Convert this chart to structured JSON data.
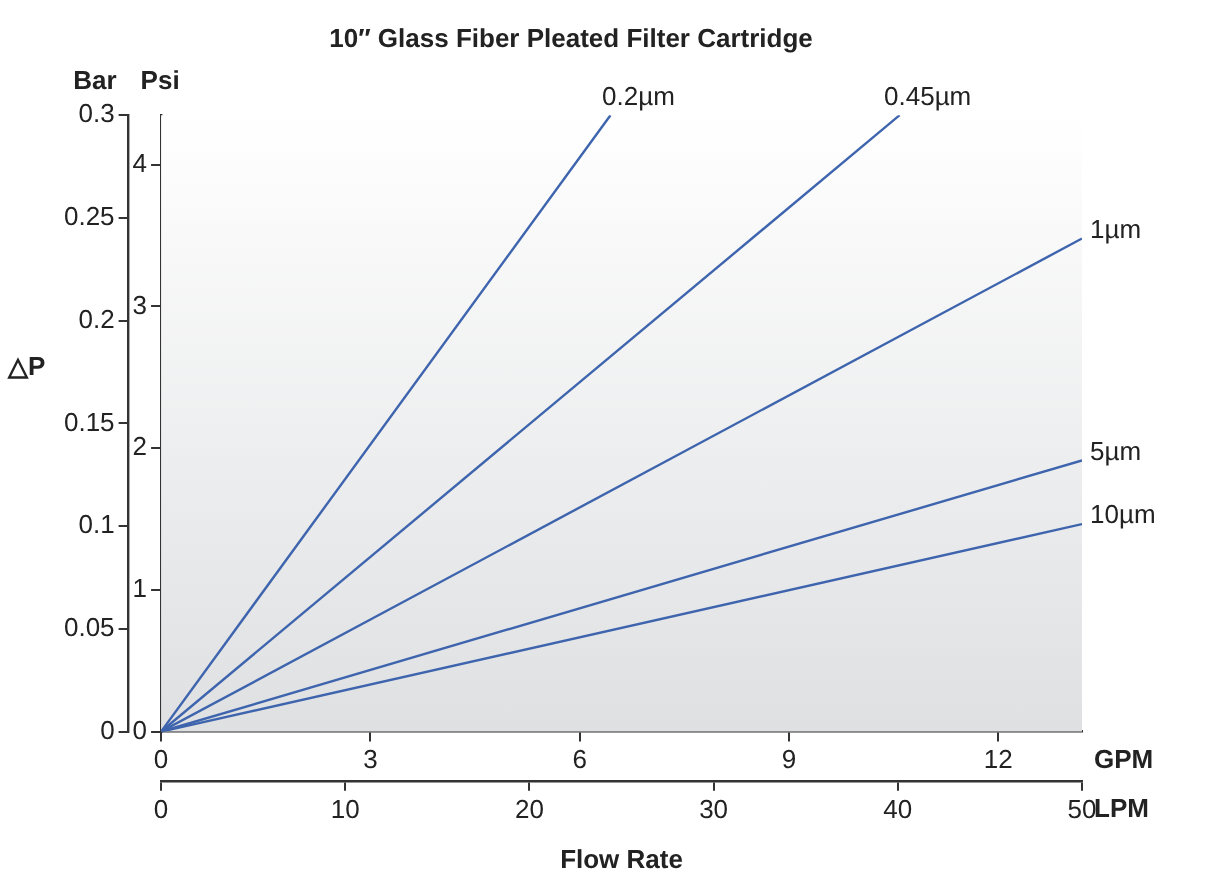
{
  "chart_data": {
    "type": "line",
    "title": "10″ Glass Fiber Pleated Filter Cartridge",
    "xlabel": "LPM",
    "x2label": "GPM",
    "ylabel": "Bar",
    "y2label": "Psi",
    "annotations": [
      "△P",
      "Flow Rate"
    ],
    "xlim": [
      0,
      50
    ],
    "xticks": [
      0,
      10,
      20,
      30,
      40,
      50
    ],
    "x2lim": [
      0,
      13.2
    ],
    "x2ticks": [
      0,
      3,
      6,
      9,
      12
    ],
    "ylim": [
      0,
      0.3
    ],
    "yticks": [
      0,
      0.05,
      0.1,
      0.15,
      0.2,
      0.25,
      0.3
    ],
    "y2lim": [
      0,
      4.35
    ],
    "y2ticks": [
      0,
      1,
      2,
      3,
      4
    ],
    "grid": false,
    "legend": false,
    "marker": "none",
    "line_style": "solid",
    "series": [
      {
        "name": "0.2µm",
        "color": "#3d64ad",
        "x": [
          0,
          24.4
        ],
        "values": [
          0,
          0.3
        ]
      },
      {
        "name": "0.45µm",
        "color": "#3d64ad",
        "x": [
          0,
          40.1
        ],
        "values": [
          0,
          0.3
        ]
      },
      {
        "name": "1µm",
        "color": "#3d64ad",
        "x": [
          0,
          50
        ],
        "values": [
          0,
          0.24
        ]
      },
      {
        "name": "5µm",
        "color": "#3d64ad",
        "x": [
          0,
          50
        ],
        "values": [
          0,
          0.132
        ]
      },
      {
        "name": "10µm",
        "color": "#3d64ad",
        "x": [
          0,
          50
        ],
        "values": [
          0,
          0.101
        ]
      }
    ]
  }
}
